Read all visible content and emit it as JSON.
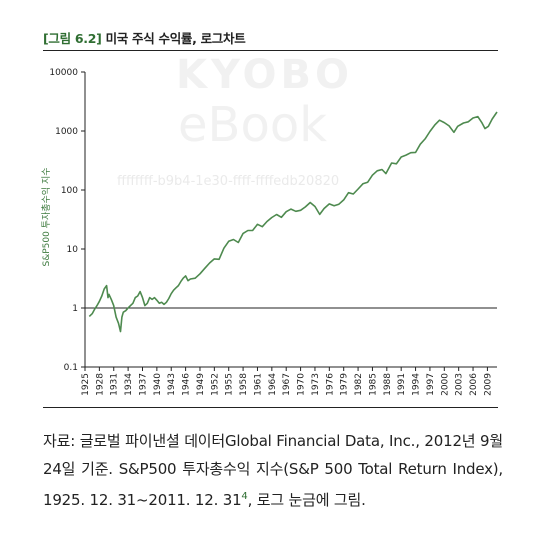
{
  "figure": {
    "tag": "[그림 6.2]",
    "title": "미국 주식 수익률, 로그차트"
  },
  "watermark": {
    "line1": "KYOBO",
    "line2": "eBook",
    "line3": "ffffffff-b9b4-1e30-ffff-ffffedb20820"
  },
  "caption": {
    "text": "자료: 글로벌 파이낸셜 데이터Global Financial Data, Inc., 2012년 9월 24일 기준. S&P500 투자총수익 지수(S&P 500 Total Return Index), 1925. 12. 31~2011. 12. 31",
    "footnote": "4",
    "tail": ", 로그 눈금에 그림."
  },
  "chart_data": {
    "type": "line",
    "ylabel": "S&P500 투자총수익 지수",
    "yscale": "log",
    "ylim": [
      0.1,
      10000
    ],
    "y_ticks": [
      "10000",
      "1000",
      "100",
      "10",
      "1",
      "0.1"
    ],
    "xlim": [
      1925,
      2011
    ],
    "x_ticks": [
      "1925",
      "1928",
      "1931",
      "1934",
      "1937",
      "1940",
      "1943",
      "1946",
      "1949",
      "1952",
      "1955",
      "1958",
      "1961",
      "1964",
      "1967",
      "1970",
      "1973",
      "1976",
      "1979",
      "1982",
      "1985",
      "1988",
      "1991",
      "1994",
      "1997",
      "2000",
      "2003",
      "2006",
      "2009"
    ],
    "series": [
      {
        "name": "",
        "color": "#4e8a4f",
        "x": [
          1925.9,
          1926.5,
          1927,
          1927.5,
          1928,
          1928.5,
          1929,
          1929.5,
          1929.8,
          1930,
          1930.5,
          1931,
          1931.5,
          1932,
          1932.4,
          1932.7,
          1933,
          1933.5,
          1934,
          1934.5,
          1935,
          1935.5,
          1936,
          1936.5,
          1937,
          1937.5,
          1938,
          1938.5,
          1939,
          1939.5,
          1940,
          1940.5,
          1941,
          1941.5,
          1942,
          1942.5,
          1943,
          1943.5,
          1944,
          1944.5,
          1945,
          1945.5,
          1946,
          1946.5,
          1947,
          1948,
          1949,
          1950,
          1951,
          1952,
          1953,
          1954,
          1955,
          1956,
          1957,
          1958,
          1959,
          1960,
          1961,
          1962,
          1963,
          1964,
          1965,
          1966,
          1967,
          1968,
          1969,
          1970,
          1971,
          1972,
          1973,
          1974,
          1974.9,
          1976,
          1977,
          1978,
          1979,
          1980,
          1981,
          1982,
          1983,
          1984,
          1985,
          1986,
          1987,
          1987.8,
          1989,
          1990,
          1991,
          1992,
          1993,
          1994,
          1995,
          1996,
          1997,
          1998,
          1999,
          2000,
          2001,
          2002,
          2002.8,
          2004,
          2005,
          2006,
          2007,
          2007.8,
          2008.5,
          2009.2,
          2010,
          2011
        ],
        "y": [
          0.72,
          0.8,
          0.95,
          1.1,
          1.3,
          1.6,
          2.1,
          2.4,
          1.5,
          1.7,
          1.4,
          1.1,
          0.7,
          0.55,
          0.4,
          0.7,
          0.85,
          0.9,
          1.0,
          1.1,
          1.2,
          1.5,
          1.6,
          1.9,
          1.5,
          1.1,
          1.2,
          1.5,
          1.4,
          1.5,
          1.35,
          1.2,
          1.25,
          1.15,
          1.25,
          1.45,
          1.75,
          2.0,
          2.2,
          2.4,
          2.8,
          3.2,
          3.5,
          2.9,
          3.1,
          3.2,
          3.8,
          4.7,
          5.8,
          6.8,
          6.7,
          10.3,
          13.5,
          14.5,
          12.9,
          18.4,
          20.6,
          20.7,
          26.2,
          23.9,
          29.3,
          34.2,
          38.4,
          34.5,
          42.8,
          47.5,
          43.5,
          45.2,
          51.7,
          61.5,
          52.5,
          38.6,
          48.5,
          58.1,
          53.9,
          57.4,
          68.0,
          90.1,
          85.7,
          104.1,
          127.5,
          135.5,
          178.4,
          211.7,
          222.8,
          190,
          286.8,
          277.9,
          362.3,
          389.8,
          428.9,
          434.6,
          597.8,
          735.0,
          980.1,
          1260.2,
          1525.2,
          1386.7,
          1221.8,
          951.7,
          1200,
          1366.3,
          1433.3,
          1659.7,
          1750.9,
          1400,
          1100,
          1200,
          1600,
          2100
        ]
      }
    ]
  }
}
